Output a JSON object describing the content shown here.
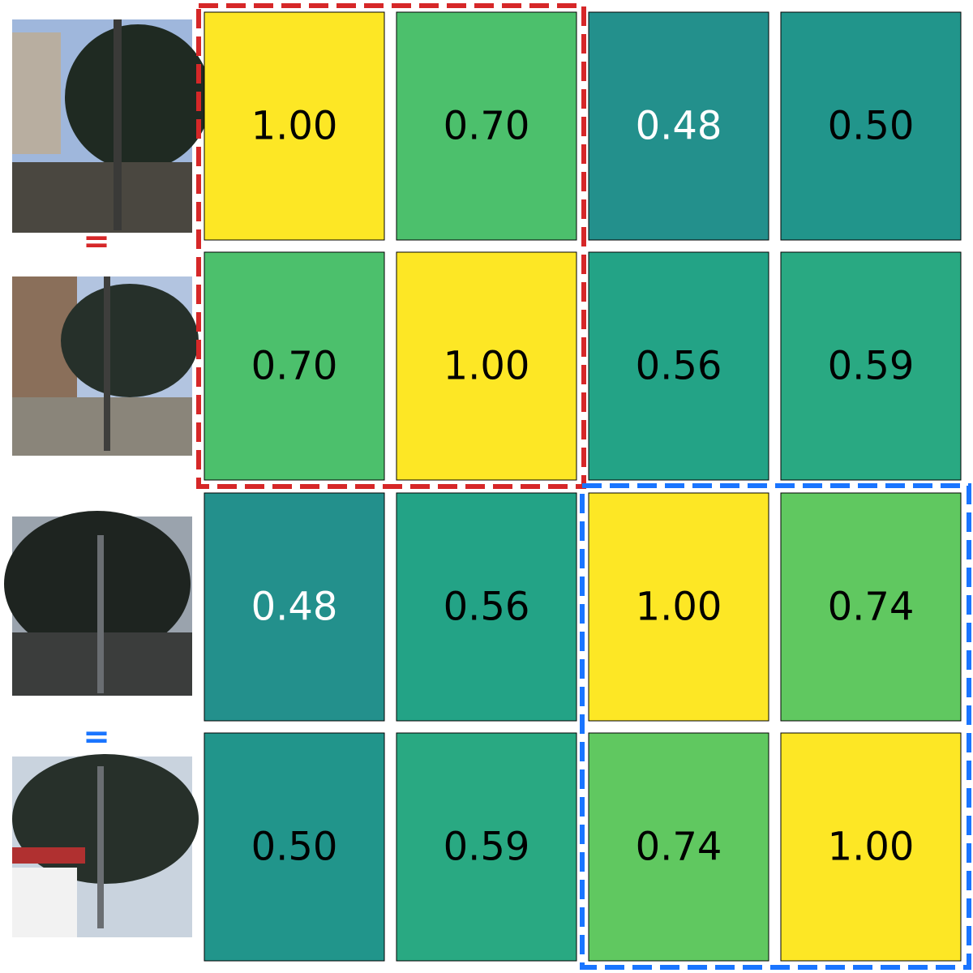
{
  "chart_data": {
    "type": "heatmap",
    "values": [
      [
        1.0,
        0.7,
        0.48,
        0.5
      ],
      [
        0.7,
        1.0,
        0.56,
        0.59
      ],
      [
        0.48,
        0.56,
        1.0,
        0.74
      ],
      [
        0.5,
        0.59,
        0.74,
        1.0
      ]
    ],
    "value_labels": [
      [
        "1.00",
        "0.70",
        "0.48",
        "0.50"
      ],
      [
        "0.70",
        "1.00",
        "0.56",
        "0.59"
      ],
      [
        "0.48",
        "0.56",
        "1.00",
        "0.74"
      ],
      [
        "0.50",
        "0.59",
        "0.74",
        "1.00"
      ]
    ],
    "colormap": "viridis",
    "clim": [
      0.48,
      1.0
    ],
    "label_colors": [
      [
        "#000000",
        "#000000",
        "#ffffff",
        "#000000"
      ],
      [
        "#000000",
        "#000000",
        "#000000",
        "#000000"
      ],
      [
        "#ffffff",
        "#000000",
        "#000000",
        "#000000"
      ],
      [
        "#000000",
        "#000000",
        "#000000",
        "#000000"
      ]
    ],
    "annotations": [
      {
        "text": "=",
        "color": "#d62728"
      },
      {
        "text": "=",
        "color": "#1a75ff"
      }
    ]
  }
}
